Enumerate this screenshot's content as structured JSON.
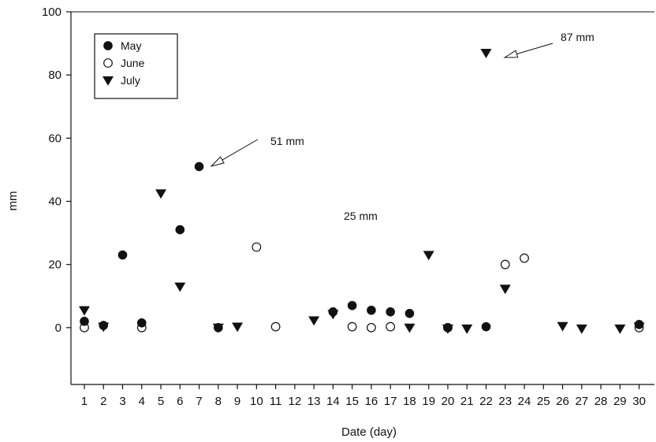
{
  "chart_data": {
    "type": "scatter",
    "xlabel": "Date (day)",
    "ylabel": "mm",
    "xlim": [
      0.3,
      30.8
    ],
    "ylim": [
      -18,
      100
    ],
    "x_ticks": [
      1,
      2,
      3,
      4,
      5,
      6,
      7,
      8,
      9,
      10,
      11,
      12,
      13,
      14,
      15,
      16,
      17,
      18,
      19,
      20,
      21,
      22,
      23,
      24,
      25,
      26,
      27,
      28,
      29,
      30
    ],
    "y_ticks": [
      0,
      20,
      40,
      60,
      80,
      100
    ],
    "grid": false,
    "legend_position": "top-left",
    "series": [
      {
        "name": "May",
        "marker": "filled-circle",
        "color": "#111111",
        "points": [
          {
            "x": 1,
            "y": 2
          },
          {
            "x": 2,
            "y": 0.7
          },
          {
            "x": 3,
            "y": 23
          },
          {
            "x": 4,
            "y": 1.5
          },
          {
            "x": 6,
            "y": 31
          },
          {
            "x": 7,
            "y": 51
          },
          {
            "x": 8,
            "y": 0
          },
          {
            "x": 14,
            "y": 5
          },
          {
            "x": 15,
            "y": 7
          },
          {
            "x": 16,
            "y": 5.5
          },
          {
            "x": 17,
            "y": 5
          },
          {
            "x": 18,
            "y": 4.5
          },
          {
            "x": 20,
            "y": 0
          },
          {
            "x": 22,
            "y": 0.3
          },
          {
            "x": 30,
            "y": 1
          }
        ]
      },
      {
        "name": "June",
        "marker": "open-circle",
        "color": "#111111",
        "points": [
          {
            "x": 1,
            "y": 0
          },
          {
            "x": 4,
            "y": 0
          },
          {
            "x": 10,
            "y": 25.5
          },
          {
            "x": 11,
            "y": 0.3
          },
          {
            "x": 15,
            "y": 0.3
          },
          {
            "x": 16,
            "y": 0
          },
          {
            "x": 17,
            "y": 0.3
          },
          {
            "x": 20,
            "y": 0
          },
          {
            "x": 23,
            "y": 20
          },
          {
            "x": 24,
            "y": 22
          },
          {
            "x": 30,
            "y": 0
          }
        ]
      },
      {
        "name": "July",
        "marker": "filled-triangle-down",
        "color": "#111111",
        "points": [
          {
            "x": 1,
            "y": 5.5
          },
          {
            "x": 2,
            "y": 0.3
          },
          {
            "x": 5,
            "y": 42.5
          },
          {
            "x": 6,
            "y": 13
          },
          {
            "x": 8,
            "y": 0
          },
          {
            "x": 9,
            "y": 0.3
          },
          {
            "x": 13,
            "y": 2.3
          },
          {
            "x": 14,
            "y": 4.3
          },
          {
            "x": 18,
            "y": 0
          },
          {
            "x": 19,
            "y": 23
          },
          {
            "x": 20,
            "y": -0.3
          },
          {
            "x": 21,
            "y": -0.3
          },
          {
            "x": 22,
            "y": 87
          },
          {
            "x": 23,
            "y": 12.3
          },
          {
            "x": 26,
            "y": 0.5
          },
          {
            "x": 27,
            "y": -0.3
          },
          {
            "x": 29,
            "y": -0.3
          },
          {
            "x": 30,
            "y": 0.3
          }
        ]
      }
    ],
    "annotations": [
      {
        "text": "51 mm",
        "x": 7,
        "y": 51,
        "arrow": true
      },
      {
        "text": "87 mm",
        "x": 22,
        "y": 87,
        "arrow": true
      },
      {
        "text": "25 mm",
        "arrow": false
      }
    ]
  }
}
